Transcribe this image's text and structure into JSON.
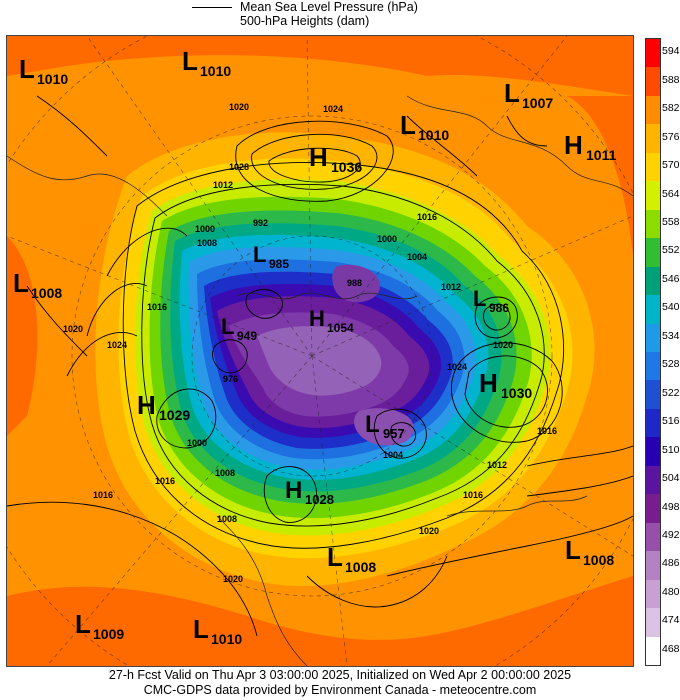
{
  "legend": {
    "line1": "Mean Sea Level Pressure (hPa)",
    "line2": "500-hPa Heights (dam)"
  },
  "colorbar": {
    "labels": [
      "594",
      "588",
      "582",
      "576",
      "570",
      "564",
      "558",
      "552",
      "546",
      "540",
      "534",
      "528",
      "522",
      "516",
      "510",
      "504",
      "498",
      "492",
      "486",
      "480",
      "474",
      "468"
    ],
    "colors": [
      "#ff0000",
      "#ff4b00",
      "#ff8c00",
      "#ffb400",
      "#ffd200",
      "#d2f000",
      "#8cdc00",
      "#32be32",
      "#00a078",
      "#00b4c8",
      "#1e9be6",
      "#1e78e6",
      "#1e50d2",
      "#1e28c8",
      "#2800b4",
      "#5a14a0",
      "#781e8c",
      "#9650aa",
      "#b482c3",
      "#c8a0d2",
      "#dcc3e6",
      "#ffffff"
    ]
  },
  "systems": [
    {
      "type": "L",
      "value": "1010"
    },
    {
      "type": "L",
      "value": "1010"
    },
    {
      "type": "H",
      "value": "1036"
    },
    {
      "type": "L",
      "value": "1010"
    },
    {
      "type": "L",
      "value": "1007"
    },
    {
      "type": "H",
      "value": "1011"
    },
    {
      "type": "L",
      "value": "1008"
    },
    {
      "type": "L",
      "value": "985"
    },
    {
      "type": "H",
      "value": "1054"
    },
    {
      "type": "L",
      "value": "986"
    },
    {
      "type": "L",
      "value": "949"
    },
    {
      "type": "H",
      "value": "1030"
    },
    {
      "type": "H",
      "value": "1029"
    },
    {
      "type": "L",
      "value": "957"
    },
    {
      "type": "H",
      "value": "1028"
    },
    {
      "type": "L",
      "value": "1008"
    },
    {
      "type": "L",
      "value": "1008"
    },
    {
      "type": "L",
      "value": "1009"
    },
    {
      "type": "L",
      "value": "1010"
    }
  ],
  "contour_labels": [
    "1020",
    "1024",
    "1028",
    "1012",
    "1016",
    "992",
    "1008",
    "1000",
    "1004",
    "1016",
    "1020",
    "1024",
    "988",
    "1012",
    "1020",
    "1016",
    "1000",
    "976",
    "1008",
    "1016",
    "1012",
    "1016",
    "1020",
    "1020",
    "1004",
    "1024",
    "1000",
    "1016",
    "1008"
  ],
  "footer": {
    "line1": "27-h Fcst Valid on Thu Apr  3 03:00:00 2025, Initialized on Wed Apr  2 00:00:00 2025",
    "line2": "CMC-GDPS data provided by Environment Canada - meteocentre.com"
  }
}
